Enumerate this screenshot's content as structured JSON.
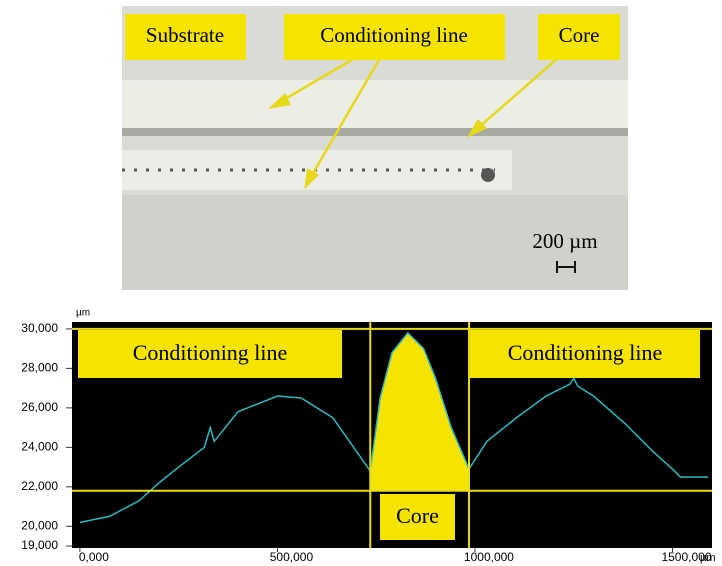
{
  "micrograph": {
    "labels": [
      "Substrate",
      "Conditioning line",
      "Core"
    ],
    "scale_bar": "200 µm"
  },
  "chart_data": {
    "type": "line",
    "y_unit": "µm",
    "x_unit": "µm",
    "x": [
      0,
      75000,
      150000,
      200000,
      250000,
      315000,
      330000,
      340000,
      400000,
      500000,
      560000,
      640000,
      700000,
      735000,
      760000,
      790000,
      830000,
      870000,
      900000,
      940000,
      985000,
      1030000,
      1105000,
      1180000,
      1240000,
      1250000,
      1260000,
      1300000,
      1380000,
      1450000,
      1500000,
      1520000,
      1590000
    ],
    "series": [
      {
        "color": "#2fb8c0",
        "values": [
          20200,
          20500,
          21300,
          22200,
          23000,
          24000,
          25000,
          24300,
          25800,
          26600,
          26500,
          25500,
          23800,
          22800,
          26500,
          28800,
          29800,
          29000,
          27500,
          25000,
          22900,
          24300,
          25500,
          26600,
          27200,
          27500,
          27100,
          26600,
          25200,
          23800,
          22900,
          22500,
          22500
        ]
      }
    ],
    "core_fill": "#f5e400",
    "reference_lines": {
      "color": "#e8dc1a",
      "y": [
        30000,
        21800
      ],
      "x": [
        735000,
        985000
      ]
    },
    "annotations": [
      "Conditioning line",
      "Conditioning line",
      "Core"
    ],
    "xlim": [
      -20000,
      1600000
    ],
    "ylim": [
      18900,
      30350
    ],
    "xticks": [
      {
        "value": 0,
        "label": "0,000"
      },
      {
        "value": 500000,
        "label": "500,000"
      },
      {
        "value": 1000000,
        "label": "1000,000"
      },
      {
        "value": 1500000,
        "label": "1500,000"
      }
    ],
    "yticks": [
      {
        "value": 19000,
        "label": "19,000"
      },
      {
        "value": 20000,
        "label": "20,000"
      },
      {
        "value": 22000,
        "label": "22,000"
      },
      {
        "value": 24000,
        "label": "24,000"
      },
      {
        "value": 26000,
        "label": "26,000"
      },
      {
        "value": 28000,
        "label": "28,000"
      },
      {
        "value": 30000,
        "label": "30,000"
      }
    ]
  }
}
